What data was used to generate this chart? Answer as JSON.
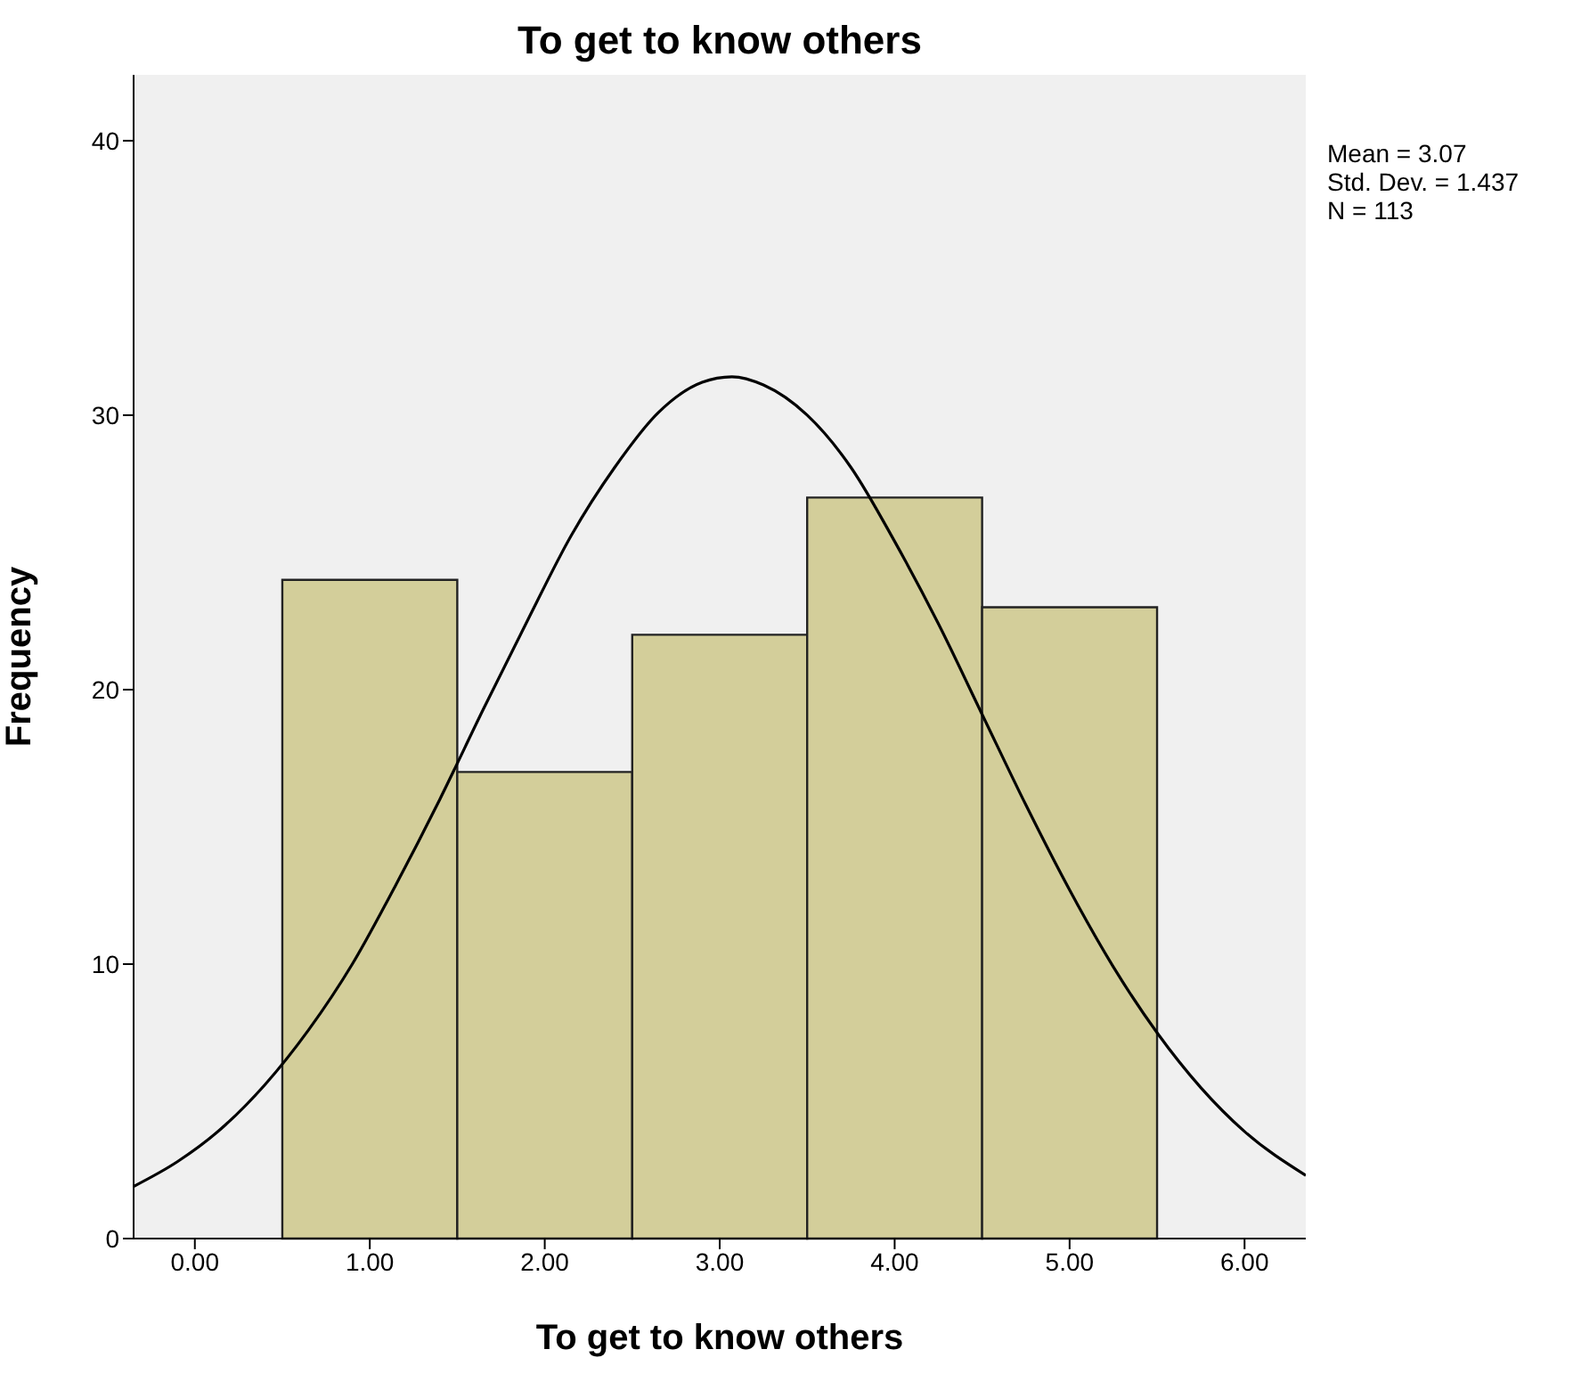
{
  "chart_data": {
    "type": "histogram",
    "title": "To get to know others",
    "xlabel": "To get to know others",
    "ylabel": "Frequency",
    "annotations": [
      "Mean = 3.07",
      "Std. Dev. = 1.437",
      "N = 113"
    ],
    "bins": [
      0.5,
      1.5,
      2.5,
      3.5,
      4.5,
      5.5
    ],
    "values": [
      24,
      17,
      22,
      27,
      23
    ],
    "color": "#d3ce9a",
    "series": [
      {
        "type": "line",
        "color": "#000000",
        "x": [
          -0.35,
          -0.1,
          0.15,
          0.4,
          0.65,
          0.9,
          1.15,
          1.4,
          1.65,
          1.9,
          2.15,
          2.4,
          2.65,
          2.9,
          3.07,
          3.25,
          3.5,
          3.75,
          4.0,
          4.25,
          4.5,
          4.75,
          5.0,
          5.25,
          5.5,
          5.75,
          6.0,
          6.35
        ],
        "values": [
          1.9,
          2.8,
          4.0,
          5.6,
          7.6,
          10.0,
          12.9,
          16.0,
          19.3,
          22.5,
          25.6,
          28.1,
          30.1,
          31.2,
          31.4,
          31.1,
          30.0,
          28.1,
          25.4,
          22.4,
          19.1,
          15.8,
          12.7,
          9.9,
          7.5,
          5.5,
          3.9,
          2.3
        ]
      }
    ],
    "xlim": [
      -0.35,
      6.35
    ],
    "ylim": [
      0,
      42.4
    ],
    "xticks": [
      {
        "value": 0,
        "label": "0.00"
      },
      {
        "value": 1,
        "label": "1.00"
      },
      {
        "value": 2,
        "label": "2.00"
      },
      {
        "value": 3,
        "label": "3.00"
      },
      {
        "value": 4,
        "label": "4.00"
      },
      {
        "value": 5,
        "label": "5.00"
      },
      {
        "value": 6,
        "label": "6.00"
      }
    ],
    "yticks": [
      0,
      10,
      20,
      30,
      40
    ],
    "grid": false,
    "marker": "none",
    "line_style": "solid"
  }
}
